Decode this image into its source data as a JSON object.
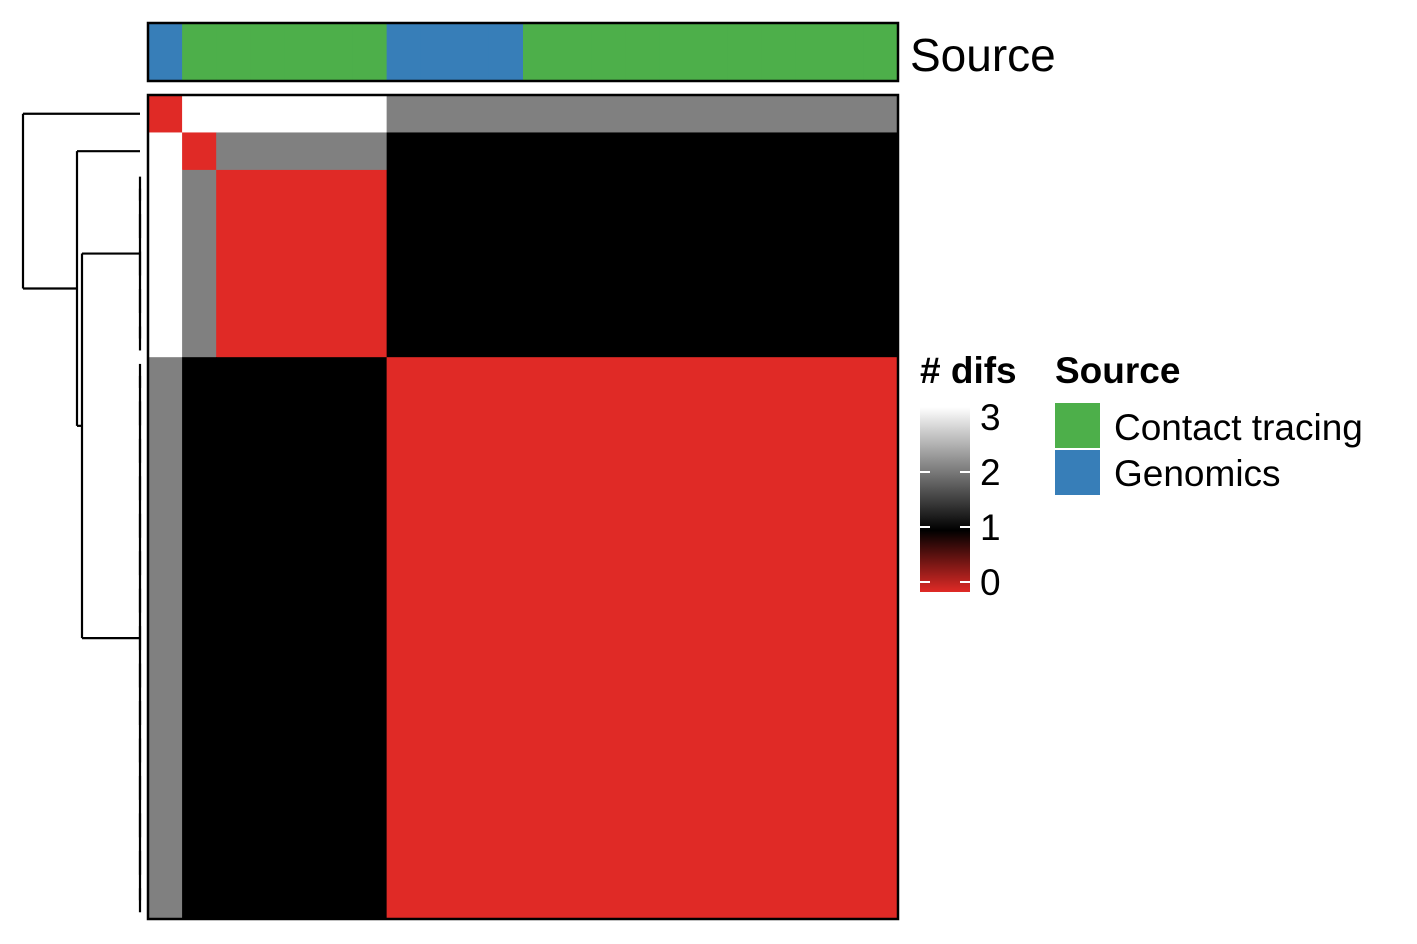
{
  "chart_data": {
    "type": "heatmap",
    "annotation": {
      "title": "Source",
      "row_labels": [
        "Genomics",
        "Contact tracing",
        "Contact tracing",
        "Contact tracing",
        "Contact tracing",
        "Contact tracing",
        "Contact tracing",
        "Genomics",
        "Genomics",
        "Genomics",
        "Genomics",
        "Contact tracing",
        "Contact tracing",
        "Contact tracing",
        "Contact tracing",
        "Contact tracing",
        "Contact tracing",
        "Contact tracing",
        "Contact tracing",
        "Contact tracing",
        "Contact tracing",
        "Contact tracing"
      ],
      "colors": {
        "Contact tracing": "#4DAF4A",
        "Genomics": "#377EB8"
      }
    },
    "groups": [
      {
        "size": 1
      },
      {
        "size": 1
      },
      {
        "size": 5
      },
      {
        "size": 15
      }
    ],
    "group_matrix": [
      [
        0,
        3,
        3,
        2
      ],
      [
        3,
        0,
        2,
        1
      ],
      [
        3,
        2,
        0,
        1
      ],
      [
        2,
        1,
        1,
        0
      ]
    ],
    "color_scale": {
      "title": "# difs",
      "min": 0,
      "max": 3,
      "ticks": [
        0,
        1,
        2,
        3
      ],
      "stops": [
        {
          "value": 0,
          "color": "#E02A26"
        },
        {
          "value": 1,
          "color": "#000000"
        },
        {
          "value": 3,
          "color": "#FFFFFF"
        }
      ]
    },
    "legend": {
      "title": "Source",
      "entries": [
        {
          "label": "Contact tracing",
          "color": "#4DAF4A"
        },
        {
          "label": "Genomics",
          "color": "#377EB8"
        }
      ],
      "placement": "right"
    },
    "dendrogram": "rows"
  }
}
